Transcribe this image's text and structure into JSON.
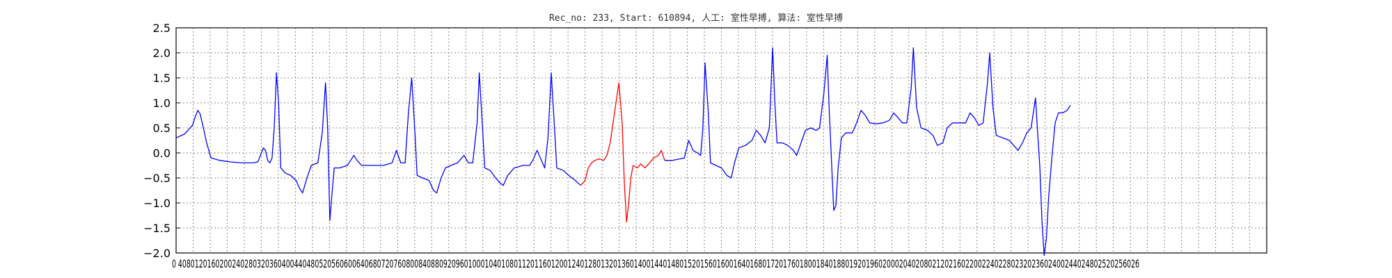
{
  "chart_data": {
    "type": "line",
    "title": "Rec_no: 233, Start: 610894, 人工: 室性早搏, 算法: 室性早搏",
    "xlabel": "",
    "ylabel": "",
    "xlim": [
      0,
      1000
    ],
    "ylim": [
      -2.0,
      2.5
    ],
    "grid": true,
    "yticks": [
      2.5,
      2.0,
      1.5,
      1.0,
      0.5,
      0.0,
      -0.5,
      -1.0,
      -1.5,
      -2.0
    ],
    "ytick_labels": [
      "2.5",
      "2.0",
      "1.5",
      "1.0",
      "0.5",
      "0.0",
      "−0.5",
      "−1.0",
      "−1.5",
      "−2.0"
    ],
    "xticks": [
      0,
      40,
      80,
      120,
      160,
      200,
      240,
      280,
      320,
      360,
      400,
      440,
      480,
      520,
      560,
      600,
      640,
      680,
      720,
      760,
      800,
      840,
      880,
      920,
      960,
      1000,
      1040,
      1080,
      1120,
      1160,
      1200,
      1240,
      1280,
      1320,
      1360,
      1400,
      1440,
      1480,
      1520,
      1560,
      1600,
      1640,
      1680,
      1720,
      1760,
      1800,
      1840,
      1880,
      1920,
      1960,
      2000,
      2040,
      2080,
      2120,
      2160,
      2200,
      2240,
      2280,
      2320,
      2360,
      2400,
      2440,
      2480,
      2520,
      2560,
      2600
    ],
    "xtick_text": "0 4080120160200240280320360400440480520560600640680720760800840880920960100010401080112011601200124012801320136014001440148015201560160016401680172017601800184018801920196020002040208021202160220022402280232023602400244024802520256026",
    "series": [
      {
        "color": "#0000ff",
        "points": [
          [
            0,
            0.3
          ],
          [
            8,
            0.38
          ],
          [
            15,
            0.55
          ],
          [
            18,
            0.75
          ],
          [
            20,
            0.85
          ],
          [
            22,
            0.78
          ],
          [
            25,
            0.5
          ],
          [
            28,
            0.2
          ],
          [
            32,
            -0.1
          ],
          [
            40,
            -0.15
          ],
          [
            50,
            -0.18
          ],
          [
            60,
            -0.2
          ],
          [
            70,
            -0.2
          ],
          [
            75,
            -0.18
          ],
          [
            80,
            0.1
          ],
          [
            82,
            0.05
          ],
          [
            84,
            -0.15
          ],
          [
            86,
            -0.2
          ],
          [
            88,
            -0.1
          ],
          [
            90,
            0.5
          ],
          [
            92,
            1.6
          ],
          [
            94,
            1.0
          ],
          [
            96,
            -0.3
          ],
          [
            100,
            -0.4
          ],
          [
            105,
            -0.45
          ],
          [
            110,
            -0.55
          ],
          [
            113,
            -0.7
          ],
          [
            116,
            -0.8
          ],
          [
            120,
            -0.5
          ],
          [
            124,
            -0.25
          ],
          [
            130,
            -0.2
          ],
          [
            134,
            0.4
          ],
          [
            137,
            1.4
          ],
          [
            139,
            0.5
          ],
          [
            141,
            -1.35
          ],
          [
            143,
            -0.8
          ],
          [
            145,
            -0.3
          ],
          [
            150,
            -0.3
          ],
          [
            157,
            -0.25
          ],
          [
            160,
            -0.15
          ],
          [
            163,
            -0.05
          ],
          [
            166,
            -0.15
          ],
          [
            170,
            -0.25
          ],
          [
            180,
            -0.25
          ],
          [
            190,
            -0.25
          ],
          [
            198,
            -0.2
          ],
          [
            202,
            0.05
          ],
          [
            206,
            -0.2
          ],
          [
            210,
            -0.2
          ],
          [
            213,
            0.8
          ],
          [
            216,
            1.5
          ],
          [
            219,
            0.4
          ],
          [
            221,
            -0.45
          ],
          [
            226,
            -0.5
          ],
          [
            232,
            -0.55
          ],
          [
            236,
            -0.75
          ],
          [
            239,
            -0.8
          ],
          [
            243,
            -0.5
          ],
          [
            247,
            -0.3
          ],
          [
            252,
            -0.25
          ],
          [
            258,
            -0.2
          ],
          [
            264,
            -0.05
          ],
          [
            268,
            -0.2
          ],
          [
            272,
            -0.2
          ],
          [
            276,
            0.6
          ],
          [
            278,
            1.6
          ],
          [
            281,
            0.5
          ],
          [
            283,
            -0.3
          ],
          [
            288,
            -0.35
          ],
          [
            293,
            -0.5
          ],
          [
            297,
            -0.6
          ],
          [
            300,
            -0.65
          ],
          [
            304,
            -0.45
          ],
          [
            310,
            -0.3
          ],
          [
            318,
            -0.25
          ],
          [
            324,
            -0.25
          ],
          [
            327,
            -0.15
          ],
          [
            331,
            0.05
          ],
          [
            334,
            -0.1
          ],
          [
            338,
            -0.3
          ],
          [
            341,
            0.3
          ],
          [
            344,
            1.6
          ],
          [
            347,
            0.5
          ],
          [
            349,
            -0.3
          ],
          [
            355,
            -0.35
          ],
          [
            360,
            -0.45
          ],
          [
            366,
            -0.55
          ],
          [
            371,
            -0.65
          ]
        ]
      },
      {
        "color": "#ff0000",
        "points": [
          [
            371,
            -0.65
          ],
          [
            375,
            -0.55
          ],
          [
            378,
            -0.3
          ],
          [
            381,
            -0.2
          ],
          [
            384,
            -0.15
          ],
          [
            388,
            -0.12
          ],
          [
            392,
            -0.15
          ],
          [
            395,
            -0.05
          ],
          [
            398,
            0.2
          ],
          [
            402,
            0.8
          ],
          [
            406,
            1.4
          ],
          [
            409,
            0.6
          ],
          [
            411,
            -0.6
          ],
          [
            413,
            -1.38
          ],
          [
            415,
            -1.0
          ],
          [
            417,
            -0.5
          ],
          [
            419,
            -0.25
          ],
          [
            423,
            -0.3
          ],
          [
            426,
            -0.22
          ],
          [
            430,
            -0.3
          ],
          [
            434,
            -0.2
          ],
          [
            438,
            -0.1
          ],
          [
            442,
            -0.05
          ],
          [
            445,
            0.05
          ],
          [
            448,
            -0.15
          ]
        ]
      },
      {
        "color": "#0000ff",
        "points": [
          [
            448,
            -0.15
          ],
          [
            455,
            -0.15
          ],
          [
            462,
            -0.12
          ],
          [
            466,
            -0.1
          ],
          [
            470,
            0.25
          ],
          [
            474,
            0.05
          ],
          [
            478,
            0.0
          ],
          [
            481,
            -0.05
          ],
          [
            483,
            0.5
          ],
          [
            485,
            1.8
          ],
          [
            488,
            0.8
          ],
          [
            490,
            -0.2
          ],
          [
            495,
            -0.25
          ],
          [
            500,
            -0.3
          ],
          [
            505,
            -0.45
          ],
          [
            509,
            -0.5
          ],
          [
            512,
            -0.2
          ],
          [
            516,
            0.1
          ],
          [
            522,
            0.15
          ],
          [
            528,
            0.25
          ],
          [
            532,
            0.45
          ],
          [
            536,
            0.35
          ],
          [
            540,
            0.2
          ],
          [
            544,
            0.5
          ],
          [
            547,
            2.1
          ],
          [
            549,
            1.0
          ],
          [
            551,
            0.2
          ],
          [
            556,
            0.2
          ],
          [
            561,
            0.15
          ],
          [
            566,
            0.05
          ],
          [
            569,
            -0.05
          ],
          [
            573,
            0.2
          ],
          [
            577,
            0.45
          ],
          [
            582,
            0.5
          ],
          [
            587,
            0.45
          ],
          [
            590,
            0.5
          ],
          [
            594,
            1.2
          ],
          [
            597,
            1.95
          ],
          [
            599,
            0.8
          ],
          [
            601,
            -0.2
          ],
          [
            603,
            -1.15
          ],
          [
            605,
            -1.05
          ],
          [
            607,
            -0.3
          ],
          [
            610,
            0.3
          ],
          [
            614,
            0.4
          ],
          [
            620,
            0.4
          ],
          [
            624,
            0.6
          ],
          [
            628,
            0.85
          ],
          [
            632,
            0.75
          ],
          [
            636,
            0.6
          ],
          [
            642,
            0.58
          ],
          [
            648,
            0.6
          ],
          [
            654,
            0.65
          ],
          [
            658,
            0.8
          ],
          [
            662,
            0.7
          ],
          [
            666,
            0.6
          ],
          [
            670,
            0.6
          ],
          [
            674,
            1.3
          ],
          [
            676,
            2.1
          ],
          [
            679,
            0.9
          ],
          [
            683,
            0.5
          ],
          [
            689,
            0.45
          ],
          [
            694,
            0.35
          ],
          [
            698,
            0.15
          ],
          [
            703,
            0.2
          ],
          [
            707,
            0.5
          ],
          [
            712,
            0.6
          ],
          [
            718,
            0.6
          ],
          [
            724,
            0.6
          ],
          [
            728,
            0.8
          ],
          [
            732,
            0.7
          ],
          [
            736,
            0.55
          ],
          [
            740,
            0.6
          ],
          [
            744,
            1.4
          ],
          [
            746,
            2.0
          ],
          [
            749,
            0.9
          ],
          [
            752,
            0.35
          ],
          [
            758,
            0.3
          ],
          [
            764,
            0.25
          ],
          [
            768,
            0.15
          ],
          [
            772,
            0.05
          ],
          [
            776,
            0.2
          ],
          [
            780,
            0.4
          ],
          [
            784,
            0.5
          ],
          [
            788,
            1.1
          ],
          [
            790,
            0.4
          ],
          [
            792,
            -0.3
          ],
          [
            794,
            -1.4
          ],
          [
            796,
            -2.05
          ],
          [
            798,
            -1.7
          ],
          [
            800,
            -0.9
          ],
          [
            803,
            -0.1
          ],
          [
            806,
            0.6
          ],
          [
            809,
            0.8
          ],
          [
            813,
            0.8
          ],
          [
            817,
            0.85
          ],
          [
            820,
            0.95
          ]
        ]
      }
    ]
  }
}
